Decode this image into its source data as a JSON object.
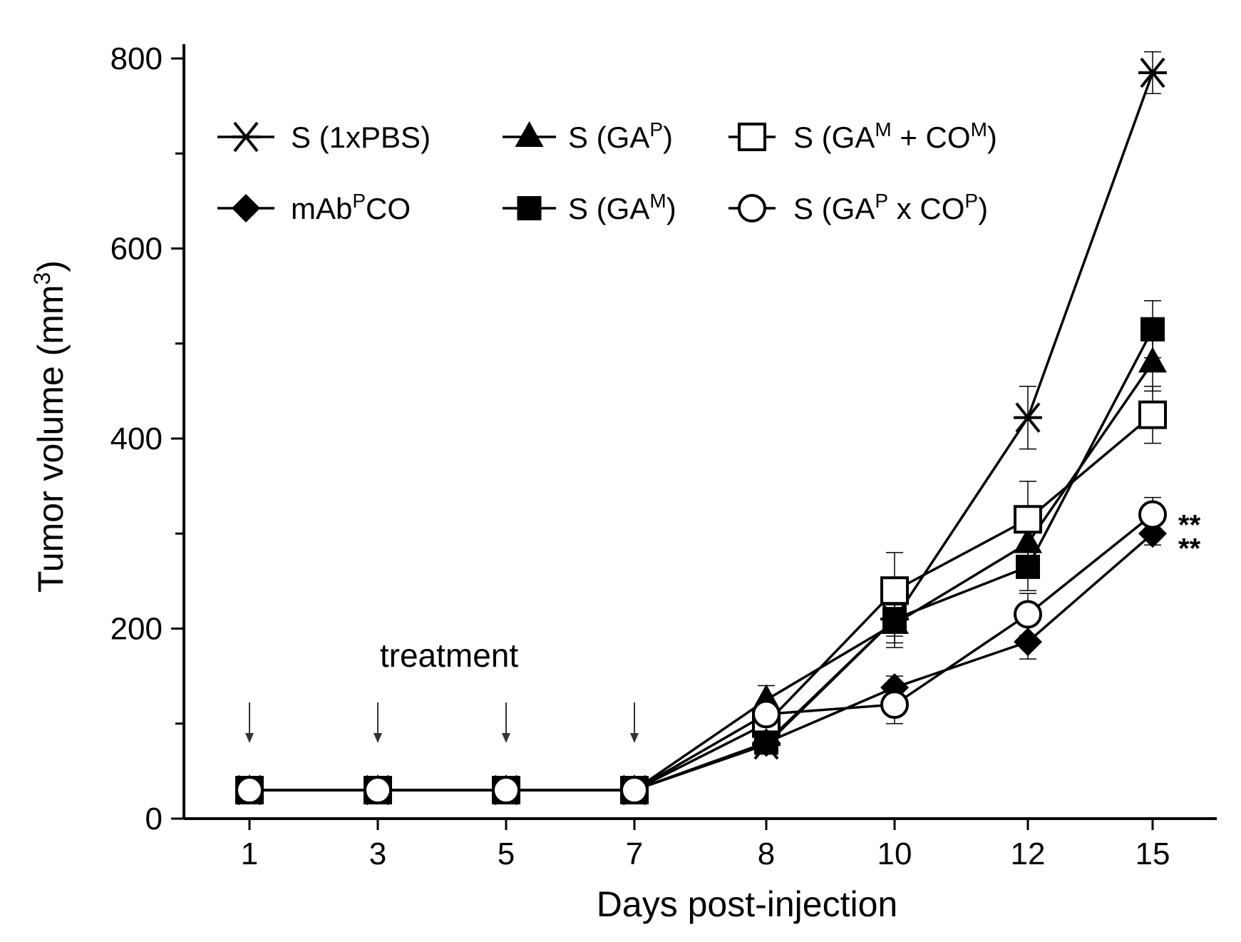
{
  "chart_data": {
    "type": "line",
    "xlabel": "Days post-injection",
    "ylabel": "Tumor volume (mm",
    "ylabel_superscript": "3",
    "ylabel_close": ")",
    "categories": [
      "1",
      "3",
      "5",
      "7",
      "8",
      "10",
      "12",
      "15"
    ],
    "ylim": [
      0,
      800
    ],
    "yticks": [
      0,
      200,
      400,
      600,
      800
    ],
    "ytick_labels": [
      "0",
      "200",
      "400",
      "600",
      "800"
    ],
    "annotation": "treatment",
    "treatment_days": [
      "1",
      "3",
      "5",
      "7"
    ],
    "significance": [
      "**",
      "**"
    ],
    "series": [
      {
        "name": "S (1xPBS)",
        "label_main": "S (1xPBS)",
        "marker": "asterisk",
        "values": [
          30,
          30,
          30,
          30,
          78,
          210,
          422,
          785
        ],
        "errors": [
          0,
          0,
          0,
          0,
          8,
          18,
          33,
          22
        ]
      },
      {
        "name": "S (GA^P)",
        "label_main": "S (GA",
        "label_sup": "P",
        "label_tail": ")",
        "marker": "filled-triangle",
        "values": [
          30,
          30,
          30,
          30,
          125,
          205,
          290,
          480
        ],
        "errors": [
          0,
          0,
          0,
          0,
          15,
          20,
          30,
          30
        ]
      },
      {
        "name": "S (GA^M + CO^M)",
        "label_main": "S (GA",
        "label_sup": "M",
        "label_mid": " + CO",
        "label_sup2": "M",
        "label_tail": ")",
        "marker": "open-square",
        "values": [
          30,
          30,
          30,
          30,
          100,
          240,
          315,
          425
        ],
        "errors": [
          0,
          0,
          0,
          0,
          15,
          40,
          40,
          30
        ]
      },
      {
        "name": "mAb^P CO",
        "label_main": "mAb",
        "label_sup": "P",
        "label_tail": "CO",
        "marker": "filled-diamond",
        "values": [
          30,
          30,
          30,
          30,
          80,
          138,
          186,
          300
        ],
        "errors": [
          0,
          0,
          0,
          0,
          8,
          12,
          18,
          12
        ]
      },
      {
        "name": "S (GA^M)",
        "label_main": "S (GA",
        "label_sup": "M",
        "label_tail": ")",
        "marker": "filled-square",
        "values": [
          30,
          30,
          30,
          30,
          80,
          210,
          265,
          515
        ],
        "errors": [
          0,
          0,
          0,
          0,
          8,
          30,
          25,
          30
        ]
      },
      {
        "name": "S (GA^P x CO^P)",
        "label_main": "S (GA",
        "label_sup": "P",
        "label_mid": " x CO",
        "label_sup2": "P",
        "label_tail": ")",
        "marker": "open-circle",
        "values": [
          30,
          30,
          30,
          30,
          110,
          120,
          215,
          320
        ],
        "errors": [
          0,
          0,
          0,
          0,
          12,
          20,
          22,
          18
        ]
      }
    ]
  }
}
